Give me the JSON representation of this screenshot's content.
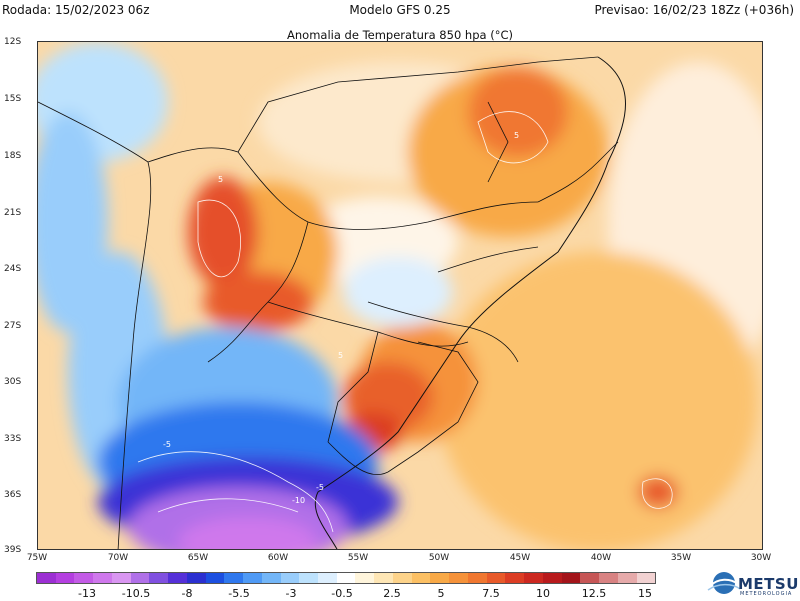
{
  "header": {
    "rodada": "Rodada: 15/02/2023 06z",
    "model": "Modelo GFS 0.25",
    "previsao": "Previsao: 16/02/23 18Zz (+036h)"
  },
  "subtitle": "Anomalia de Temperatura 850 hpa (°C)",
  "map": {
    "lat_labels": [
      "12S",
      "15S",
      "18S",
      "21S",
      "24S",
      "27S",
      "30S",
      "33S",
      "36S",
      "39S"
    ],
    "lon_labels": [
      "75W",
      "70W",
      "65W",
      "60W",
      "55W",
      "50W",
      "45W",
      "40W",
      "35W",
      "30W"
    ],
    "contour_labels": [
      "5",
      "5",
      "-5",
      "-5",
      "-10",
      "5"
    ]
  },
  "colorbar": {
    "colors": [
      "#9c2fd3",
      "#b43fe0",
      "#c35be6",
      "#cf78ec",
      "#d996f1",
      "#b070e8",
      "#8050e0",
      "#5530d8",
      "#2b2fd0",
      "#1c4fe0",
      "#2f78ee",
      "#4f9af5",
      "#73b6f8",
      "#99cdfb",
      "#bde2fd",
      "#ddeffe",
      "#ffffff",
      "#fff5dc",
      "#fee6b5",
      "#fdd38a",
      "#fcc064",
      "#f8a947",
      "#f5923a",
      "#f07730",
      "#e85a2a",
      "#dc3d24",
      "#cc2820",
      "#b81a1c",
      "#a3141a",
      "#c65656",
      "#d88282",
      "#e6aaaa",
      "#f2d2d2"
    ],
    "labels": [
      "-13",
      "-10.5",
      "-8",
      "-5.5",
      "-3",
      "-0.5",
      "2.5",
      "5",
      "7.5",
      "10",
      "12.5",
      "15"
    ]
  },
  "logo": {
    "name": "METSUL",
    "tagline": "METEOROLOGIA"
  }
}
